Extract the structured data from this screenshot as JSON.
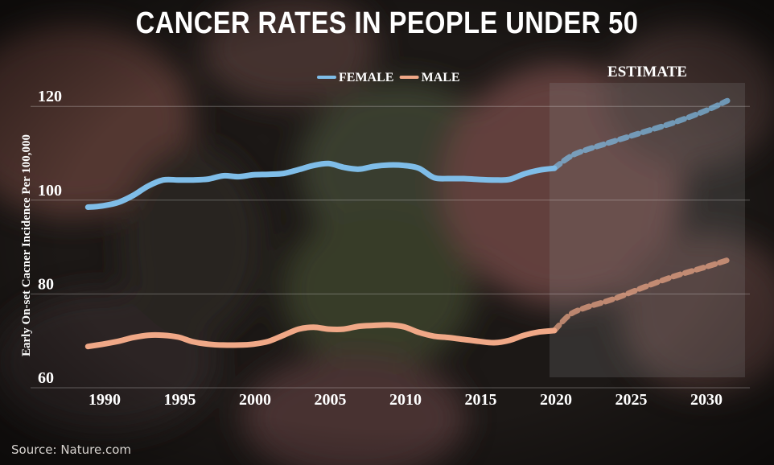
{
  "title": "CANCER RATES IN PEOPLE UNDER 50",
  "source": "Source: Nature.com",
  "chart_data": {
    "type": "line",
    "ylabel": "Early On-set Cacner Incidence Per 100,000",
    "xlabel": "",
    "x_ticks": [
      1990,
      1995,
      2000,
      2005,
      2010,
      2015,
      2020,
      2025,
      2030
    ],
    "y_ticks": [
      60,
      80,
      100,
      120
    ],
    "xlim": [
      1988,
      2032
    ],
    "ylim": [
      60,
      125
    ],
    "estimate_region": {
      "label": "ESTIMATE",
      "from": 2020,
      "to": 2032
    },
    "legend": [
      {
        "name": "FEMALE",
        "color": "#7fbde8"
      },
      {
        "name": "MALE",
        "color": "#f0a887"
      }
    ],
    "series": [
      {
        "name": "FEMALE",
        "color": "#7fbde8",
        "actual": {
          "x": [
            1989,
            1990,
            1991,
            1992,
            1993,
            1994,
            1995,
            1996,
            1997,
            1998,
            1999,
            2000,
            2001,
            2002,
            2003,
            2004,
            2005,
            2006,
            2007,
            2008,
            2009,
            2010,
            2011,
            2012,
            2013,
            2014,
            2015,
            2016,
            2017,
            2018,
            2019,
            2020
          ],
          "y": [
            98.5,
            98.8,
            99.5,
            101,
            103,
            104.3,
            104.3,
            104.3,
            104.5,
            105.2,
            105,
            105.4,
            105.5,
            105.7,
            106.5,
            107.4,
            107.8,
            107,
            106.6,
            107.2,
            107.5,
            107.4,
            106.8,
            104.8,
            104.6,
            104.6,
            104.4,
            104.3,
            104.4,
            105.6,
            106.4,
            106.8
          ]
        },
        "estimate": {
          "x": [
            2020,
            2021,
            2022,
            2024,
            2026,
            2028,
            2030,
            2031.5
          ],
          "y": [
            106.8,
            109.2,
            110.6,
            112.6,
            114.6,
            116.6,
            119,
            121.2
          ]
        }
      },
      {
        "name": "MALE",
        "color": "#f0a887",
        "actual": {
          "x": [
            1989,
            1990,
            1991,
            1992,
            1993,
            1994,
            1995,
            1996,
            1997,
            1998,
            1999,
            2000,
            2001,
            2002,
            2003,
            2004,
            2005,
            2006,
            2007,
            2008,
            2009,
            2010,
            2011,
            2012,
            2013,
            2014,
            2015,
            2016,
            2017,
            2018,
            2019,
            2020
          ],
          "y": [
            68.8,
            69.3,
            69.9,
            70.7,
            71.2,
            71.2,
            70.8,
            69.8,
            69.3,
            69.1,
            69.1,
            69.3,
            69.9,
            71.2,
            72.5,
            72.9,
            72.5,
            72.5,
            73.1,
            73.3,
            73.4,
            73,
            71.8,
            71,
            70.7,
            70.3,
            69.9,
            69.6,
            70.1,
            71.2,
            71.9,
            72.2
          ]
        },
        "estimate": {
          "x": [
            2020,
            2021,
            2022,
            2024,
            2026,
            2028,
            2030,
            2031.5
          ],
          "y": [
            72.2,
            75.5,
            77,
            79,
            81.5,
            83.8,
            85.7,
            87.2
          ]
        }
      }
    ]
  }
}
